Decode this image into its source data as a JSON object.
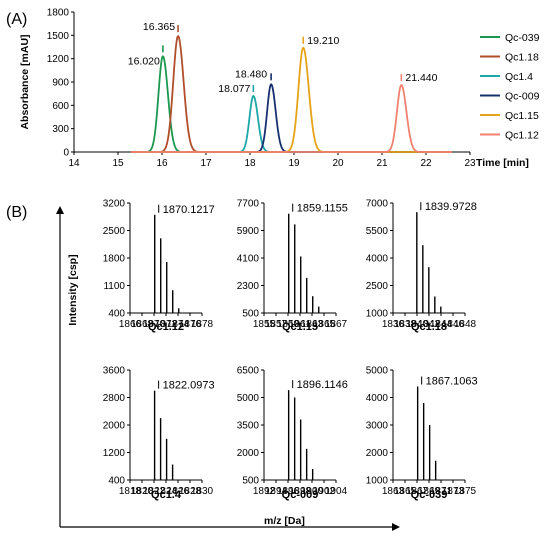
{
  "figure": {
    "panel_a_label": "(A)",
    "panel_b_label": "(B)"
  },
  "chart_data": [
    {
      "type": "line",
      "panel": "(A)",
      "xlabel": "Time [min]",
      "ylabel": "Absorbance [mAU]",
      "xlim": [
        14,
        23
      ],
      "ylim": [
        0,
        1800
      ],
      "xticks": [
        14,
        15,
        16,
        17,
        18,
        19,
        20,
        21,
        22,
        23
      ],
      "yticks": [
        0,
        300,
        600,
        900,
        1200,
        1500,
        1800
      ],
      "grid": false,
      "legend_position": "right",
      "series": [
        {
          "name": "Qc-039",
          "color": "#1a9850",
          "peak_time": 16.02,
          "peak_height": 1230,
          "sigma": 0.1,
          "label": "16.020"
        },
        {
          "name": "Qc1.18",
          "color": "#b04e2c",
          "peak_time": 16.365,
          "peak_height": 1490,
          "sigma": 0.11,
          "label": "16.365"
        },
        {
          "name": "Qc1.4",
          "color": "#1aa7a5",
          "peak_time": 18.077,
          "peak_height": 720,
          "sigma": 0.09,
          "label": "18.077"
        },
        {
          "name": "Qc-009",
          "color": "#16306e",
          "peak_time": 18.48,
          "peak_height": 870,
          "sigma": 0.09,
          "label": "18.480"
        },
        {
          "name": "Qc1.15",
          "color": "#e6a317",
          "peak_time": 19.21,
          "peak_height": 1340,
          "sigma": 0.11,
          "label": "19.210"
        },
        {
          "name": "Qc1.12",
          "color": "#f08070",
          "peak_time": 21.44,
          "peak_height": 860,
          "sigma": 0.1,
          "label": "21.440"
        }
      ]
    },
    {
      "type": "bar",
      "panel": "(B)",
      "ylabel": "Intensity [csp]",
      "xlabel": "m/z [Da]",
      "subplots": [
        {
          "title": "Qc1.12",
          "peak_label": "1870.1217",
          "xlim": [
            1866,
            1878
          ],
          "xticks": [
            1866,
            1868,
            1870,
            1872,
            1874,
            1876,
            1878
          ],
          "ylim": [
            400,
            3200
          ],
          "yticks": [
            400,
            1100,
            1800,
            2500,
            3200
          ],
          "peaks": [
            [
              1870.12,
              2900
            ],
            [
              1871.12,
              2300
            ],
            [
              1872.12,
              1700
            ],
            [
              1873.12,
              980
            ],
            [
              1874.12,
              520
            ]
          ]
        },
        {
          "title": "Qc1.15",
          "peak_label": "1859.1155",
          "xlim": [
            1855,
            1867
          ],
          "xticks": [
            1855,
            1857,
            1859,
            1861,
            1863,
            1865,
            1867
          ],
          "ylim": [
            500,
            7700
          ],
          "yticks": [
            500,
            2300,
            4100,
            5900,
            7700
          ],
          "peaks": [
            [
              1859.12,
              7000
            ],
            [
              1860.12,
              6300
            ],
            [
              1861.12,
              4200
            ],
            [
              1862.12,
              2800
            ],
            [
              1863.12,
              1600
            ],
            [
              1864.12,
              920
            ]
          ]
        },
        {
          "title": "Qc1.18",
          "peak_label": "1839.9728",
          "xlim": [
            1836,
            1848
          ],
          "xticks": [
            1836,
            1838,
            1840,
            1842,
            1844,
            1846,
            1848
          ],
          "ylim": [
            1000,
            7000
          ],
          "yticks": [
            1000,
            2500,
            4000,
            5500,
            7000
          ],
          "peaks": [
            [
              1839.97,
              6500
            ],
            [
              1840.97,
              4700
            ],
            [
              1841.97,
              3500
            ],
            [
              1842.97,
              1900
            ],
            [
              1843.97,
              1350
            ]
          ]
        },
        {
          "title": "Qc1.4",
          "peak_label": "1822.0973",
          "xlim": [
            1818,
            1830
          ],
          "xticks": [
            1818,
            1820,
            1822,
            1824,
            1826,
            1828,
            1830
          ],
          "ylim": [
            400,
            3600
          ],
          "yticks": [
            400,
            1200,
            2000,
            2800,
            3600
          ],
          "peaks": [
            [
              1822.1,
              3000
            ],
            [
              1823.1,
              2200
            ],
            [
              1824.1,
              1600
            ],
            [
              1825.1,
              850
            ]
          ]
        },
        {
          "title": "Qc-009",
          "peak_label": "1896.1146",
          "xlim": [
            1892,
            1904
          ],
          "xticks": [
            1892,
            1894,
            1896,
            1898,
            1900,
            1902,
            1904
          ],
          "ylim": [
            500,
            6500
          ],
          "yticks": [
            500,
            2000,
            3500,
            5000,
            6500
          ],
          "peaks": [
            [
              1896.11,
              5400
            ],
            [
              1897.11,
              5000
            ],
            [
              1898.11,
              3800
            ],
            [
              1899.11,
              2200
            ],
            [
              1900.11,
              1100
            ]
          ]
        },
        {
          "title": "Qc-039",
          "peak_label": "1867.1063",
          "xlim": [
            1863,
            1875
          ],
          "xticks": [
            1863,
            1865,
            1867,
            1869,
            1871,
            1873,
            1875
          ],
          "ylim": [
            1000,
            5000
          ],
          "yticks": [
            1000,
            2000,
            3000,
            4000,
            5000
          ],
          "peaks": [
            [
              1867.11,
              4400
            ],
            [
              1868.11,
              3800
            ],
            [
              1869.11,
              3000
            ],
            [
              1870.11,
              1700
            ]
          ]
        }
      ]
    }
  ]
}
